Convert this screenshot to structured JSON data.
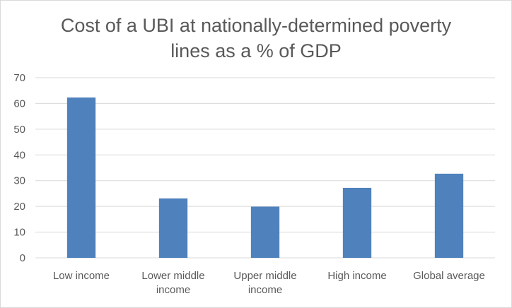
{
  "chart_data": {
    "type": "bar",
    "title_lines": [
      "Cost of a UBI at nationally-determined poverty",
      "lines as a % of GDP"
    ],
    "categories": [
      [
        "Low income"
      ],
      [
        "Lower middle",
        "income"
      ],
      [
        "Upper middle",
        "income"
      ],
      [
        "High income"
      ],
      [
        "Global average"
      ]
    ],
    "values": [
      62.3,
      23.1,
      19.9,
      27.2,
      32.7
    ],
    "ylim": [
      0,
      70
    ],
    "yticks": [
      0,
      10,
      20,
      30,
      40,
      50,
      60,
      70
    ],
    "ytick_labels": [
      "0",
      "10",
      "20",
      "30",
      "40",
      "50",
      "60",
      "70"
    ],
    "grid": true,
    "legend": "none",
    "bar_color": "#4f81bd",
    "grid_color": "#d9d9d9"
  }
}
